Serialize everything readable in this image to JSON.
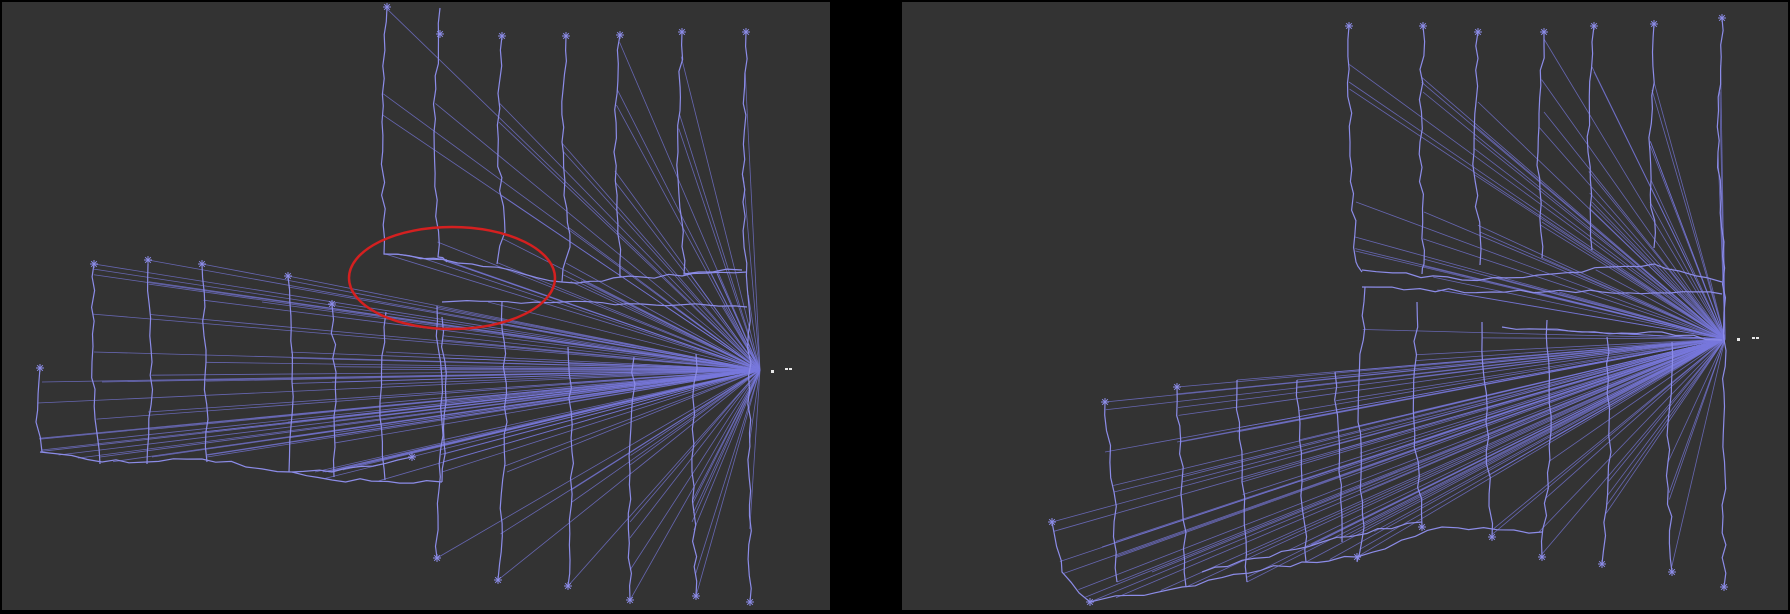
{
  "colors": {
    "background": "#000000",
    "panel": "#333333",
    "trajectory": "#8c8ce8",
    "constraint_line": "#7878dc",
    "highlight_ellipse": "#d42020",
    "sensor_marker": "#e8e8e8"
  },
  "panels": [
    {
      "id": "left",
      "description_label": "",
      "has_highlight": true
    },
    {
      "id": "right",
      "description_label": "",
      "has_highlight": false
    }
  ]
}
